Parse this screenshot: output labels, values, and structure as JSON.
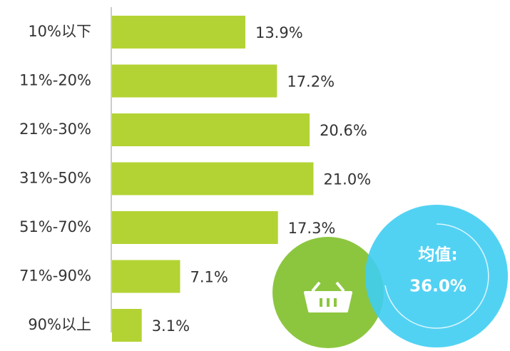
{
  "chart_data": {
    "type": "bar",
    "orientation": "horizontal",
    "categories": [
      "10%以下",
      "11%-20%",
      "21%-30%",
      "31%-50%",
      "51%-70%",
      "71%-90%",
      "90%以上"
    ],
    "values": [
      13.9,
      17.2,
      20.6,
      21.0,
      17.3,
      7.1,
      3.1
    ],
    "value_labels": [
      "13.9%",
      "17.2%",
      "20.6%",
      "21.0%",
      "17.3%",
      "7.1%",
      "3.1%"
    ],
    "color": "#b3d334",
    "annotations": [
      "均值:",
      "36.0%"
    ]
  }
}
